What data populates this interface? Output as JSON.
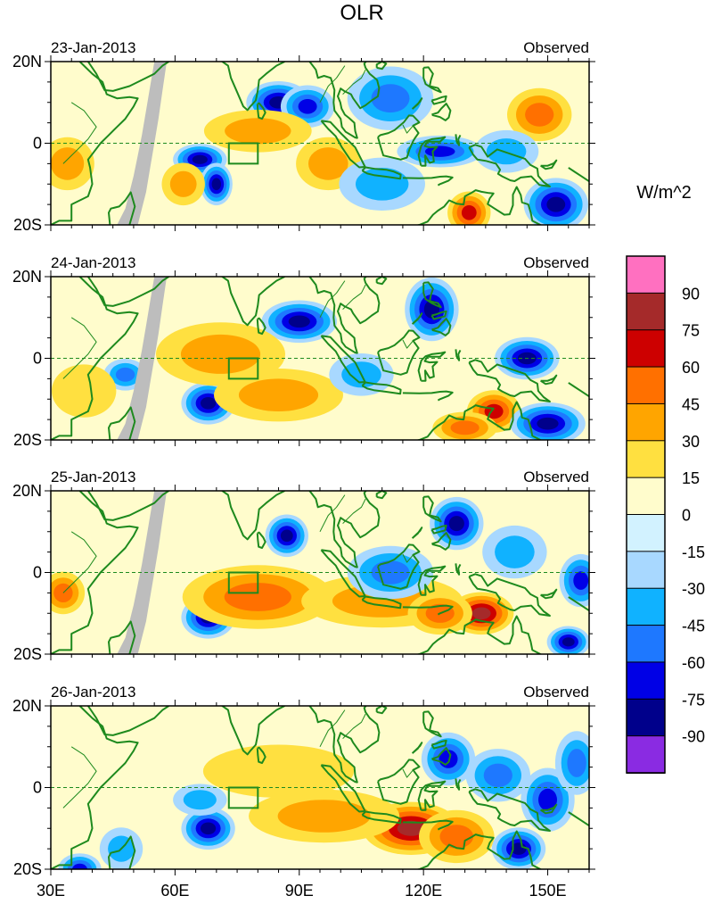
{
  "chart_data": {
    "type": "heatmap",
    "title": "OLR",
    "units_label": "W/m^2",
    "x_ticks": [
      "30E",
      "60E",
      "90E",
      "120E",
      "150E"
    ],
    "x_tick_values": [
      30,
      60,
      90,
      120,
      150
    ],
    "xlim": [
      30,
      160
    ],
    "ylim": [
      -20,
      20
    ],
    "y_tick_labels": [
      "20N",
      "0",
      "20S"
    ],
    "y_tick_values": [
      20,
      0,
      -20
    ],
    "colorbar": {
      "levels": [
        "90",
        "75",
        "60",
        "45",
        "30",
        "15",
        "0",
        "-15",
        "-30",
        "-45",
        "-60",
        "-75",
        "-90"
      ],
      "colors": [
        "#ff70c0",
        "#a52a2a",
        "#cd0000",
        "#ff7000",
        "#ffa500",
        "#ffe040",
        "#fffccc",
        "#d2f2ff",
        "#a8d8ff",
        "#10b2ff",
        "#1e78ff",
        "#0000e6",
        "#00008b",
        "#8a2be2"
      ]
    },
    "box": {
      "lon": [
        73,
        80
      ],
      "lat": [
        -5,
        0
      ]
    },
    "panels": [
      {
        "date": "23-Jan-2013",
        "tag": "Observed"
      },
      {
        "date": "24-Jan-2013",
        "tag": "Observed"
      },
      {
        "date": "25-Jan-2013",
        "tag": "Observed"
      },
      {
        "date": "26-Jan-2013",
        "tag": "Observed"
      }
    ],
    "anomaly_features": [
      [
        {
          "lon": 85,
          "lat": 10,
          "v": -80,
          "w": 6,
          "h": 4
        },
        {
          "lon": 92,
          "lat": 9,
          "v": -70,
          "w": 5,
          "h": 4
        },
        {
          "lon": 112,
          "lat": 11,
          "v": -55,
          "w": 8,
          "h": 6
        },
        {
          "lon": 148,
          "lat": 7,
          "v": 50,
          "w": 6,
          "h": 5
        },
        {
          "lon": 66,
          "lat": -4,
          "v": -85,
          "w": 5,
          "h": 3
        },
        {
          "lon": 70,
          "lat": -10,
          "v": -80,
          "w": 3,
          "h": 4
        },
        {
          "lon": 62,
          "lat": -10,
          "v": 30,
          "w": 4,
          "h": 4
        },
        {
          "lon": 34,
          "lat": -5,
          "v": 35,
          "w": 5,
          "h": 5
        },
        {
          "lon": 80,
          "lat": 3,
          "v": 30,
          "w": 10,
          "h": 4
        },
        {
          "lon": 97,
          "lat": -5,
          "v": 30,
          "w": 6,
          "h": 5
        },
        {
          "lon": 131,
          "lat": -17,
          "v": 65,
          "w": 4,
          "h": 4
        },
        {
          "lon": 152,
          "lat": -15,
          "v": -85,
          "w": 6,
          "h": 5
        },
        {
          "lon": 124,
          "lat": -2,
          "v": -60,
          "w": 8,
          "h": 3
        },
        {
          "lon": 140,
          "lat": -2,
          "v": -40,
          "w": 6,
          "h": 4
        },
        {
          "lon": 110,
          "lat": -10,
          "v": -30,
          "w": 8,
          "h": 5
        }
      ],
      [
        {
          "lon": 90,
          "lat": 9,
          "v": -85,
          "w": 7,
          "h": 4
        },
        {
          "lon": 122,
          "lat": 12,
          "v": -75,
          "w": 5,
          "h": 6
        },
        {
          "lon": 145,
          "lat": 0,
          "v": -75,
          "w": 6,
          "h": 4
        },
        {
          "lon": 68,
          "lat": -11,
          "v": -80,
          "w": 5,
          "h": 4
        },
        {
          "lon": 48,
          "lat": -4,
          "v": -55,
          "w": 4,
          "h": 3
        },
        {
          "lon": 71,
          "lat": 1,
          "v": 30,
          "w": 12,
          "h": 6
        },
        {
          "lon": 85,
          "lat": -9,
          "v": 30,
          "w": 12,
          "h": 5
        },
        {
          "lon": 137,
          "lat": -13,
          "v": 65,
          "w": 5,
          "h": 4
        },
        {
          "lon": 130,
          "lat": -17,
          "v": 45,
          "w": 6,
          "h": 3
        },
        {
          "lon": 150,
          "lat": -16,
          "v": -80,
          "w": 7,
          "h": 4
        },
        {
          "lon": 38,
          "lat": -8,
          "v": 25,
          "w": 6,
          "h": 5
        },
        {
          "lon": 105,
          "lat": -4,
          "v": -35,
          "w": 6,
          "h": 4
        }
      ],
      [
        {
          "lon": 128,
          "lat": 12,
          "v": -80,
          "w": 5,
          "h": 5
        },
        {
          "lon": 87,
          "lat": 9,
          "v": -75,
          "w": 4,
          "h": 4
        },
        {
          "lon": 68,
          "lat": -11,
          "v": -85,
          "w": 5,
          "h": 4
        },
        {
          "lon": 80,
          "lat": -6,
          "v": 45,
          "w": 14,
          "h": 6
        },
        {
          "lon": 110,
          "lat": -7,
          "v": 35,
          "w": 15,
          "h": 5
        },
        {
          "lon": 134,
          "lat": -10,
          "v": 75,
          "w": 6,
          "h": 4
        },
        {
          "lon": 124,
          "lat": -10,
          "v": 50,
          "w": 6,
          "h": 4
        },
        {
          "lon": 33,
          "lat": -5,
          "v": 50,
          "w": 4,
          "h": 4
        },
        {
          "lon": 158,
          "lat": -2,
          "v": -70,
          "w": 4,
          "h": 5
        },
        {
          "lon": 155,
          "lat": -17,
          "v": -75,
          "w": 4,
          "h": 3
        },
        {
          "lon": 112,
          "lat": 0,
          "v": -45,
          "w": 8,
          "h": 5
        },
        {
          "lon": 142,
          "lat": 5,
          "v": -40,
          "w": 6,
          "h": 5
        }
      ],
      [
        {
          "lon": 117,
          "lat": -10,
          "v": 75,
          "w": 9,
          "h": 5
        },
        {
          "lon": 128,
          "lat": -12,
          "v": 55,
          "w": 7,
          "h": 5
        },
        {
          "lon": 96,
          "lat": -7,
          "v": 35,
          "w": 14,
          "h": 5
        },
        {
          "lon": 68,
          "lat": -10,
          "v": -80,
          "w": 5,
          "h": 4
        },
        {
          "lon": 143,
          "lat": -15,
          "v": -75,
          "w": 5,
          "h": 4
        },
        {
          "lon": 126,
          "lat": 7,
          "v": -70,
          "w": 5,
          "h": 5
        },
        {
          "lon": 150,
          "lat": -3,
          "v": -60,
          "w": 5,
          "h": 6
        },
        {
          "lon": 157,
          "lat": 6,
          "v": -55,
          "w": 4,
          "h": 6
        },
        {
          "lon": 138,
          "lat": 3,
          "v": -50,
          "w": 6,
          "h": 5
        },
        {
          "lon": 85,
          "lat": 4,
          "v": 25,
          "w": 14,
          "h": 5
        },
        {
          "lon": 66,
          "lat": -3,
          "v": -30,
          "w": 5,
          "h": 3
        },
        {
          "lon": 37,
          "lat": -20,
          "v": -70,
          "w": 4,
          "h": 3
        },
        {
          "lon": 47,
          "lat": -15,
          "v": -35,
          "w": 4,
          "h": 4
        }
      ]
    ]
  }
}
